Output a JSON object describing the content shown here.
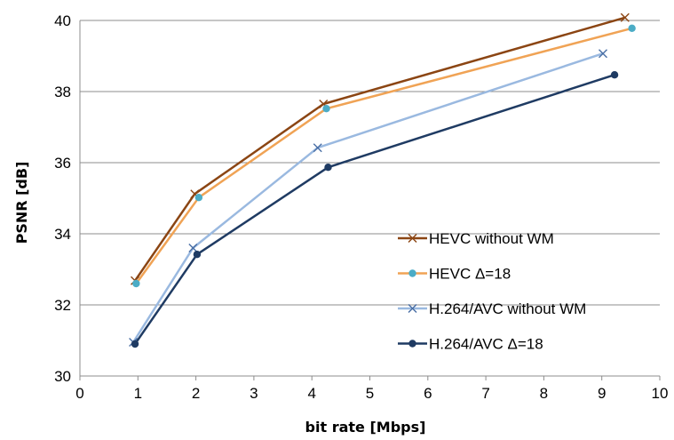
{
  "chart_data": {
    "type": "line",
    "xlabel": "bit rate [Mbps]",
    "ylabel": "PSNR [dB]",
    "xlim": [
      0,
      10
    ],
    "ylim": [
      30,
      40
    ],
    "x_ticks": [
      "0",
      "1",
      "2",
      "3",
      "4",
      "5",
      "6",
      "7",
      "8",
      "9",
      "10"
    ],
    "y_ticks": [
      "30",
      "32",
      "34",
      "36",
      "38",
      "40"
    ],
    "grid": "horizontal",
    "legend_position": "center-right",
    "series": [
      {
        "name": "HEVC without WM",
        "color": "#8b4513",
        "marker": "x",
        "x": [
          0.95,
          1.98,
          4.2,
          9.4
        ],
        "y": [
          32.68,
          35.12,
          37.65,
          40.08
        ]
      },
      {
        "name": "HEVC Δ=18",
        "color": "#f0a355",
        "marker_color": "#4bacc6",
        "marker": "circle",
        "x": [
          0.97,
          2.05,
          4.25,
          9.52
        ],
        "y": [
          32.6,
          35.02,
          37.52,
          39.78
        ]
      },
      {
        "name": "H.264/AVC without WM",
        "color": "#9ab9e0",
        "marker_color": "#4a6fa5",
        "marker": "x",
        "x": [
          0.92,
          1.95,
          4.1,
          9.02
        ],
        "y": [
          30.95,
          33.6,
          36.42,
          39.07
        ]
      },
      {
        "name": "H.264/AVC Δ=18",
        "color": "#1f3b63",
        "marker": "circle",
        "x": [
          0.95,
          2.02,
          4.28,
          9.22
        ],
        "y": [
          30.9,
          33.42,
          35.87,
          38.47
        ]
      }
    ]
  }
}
